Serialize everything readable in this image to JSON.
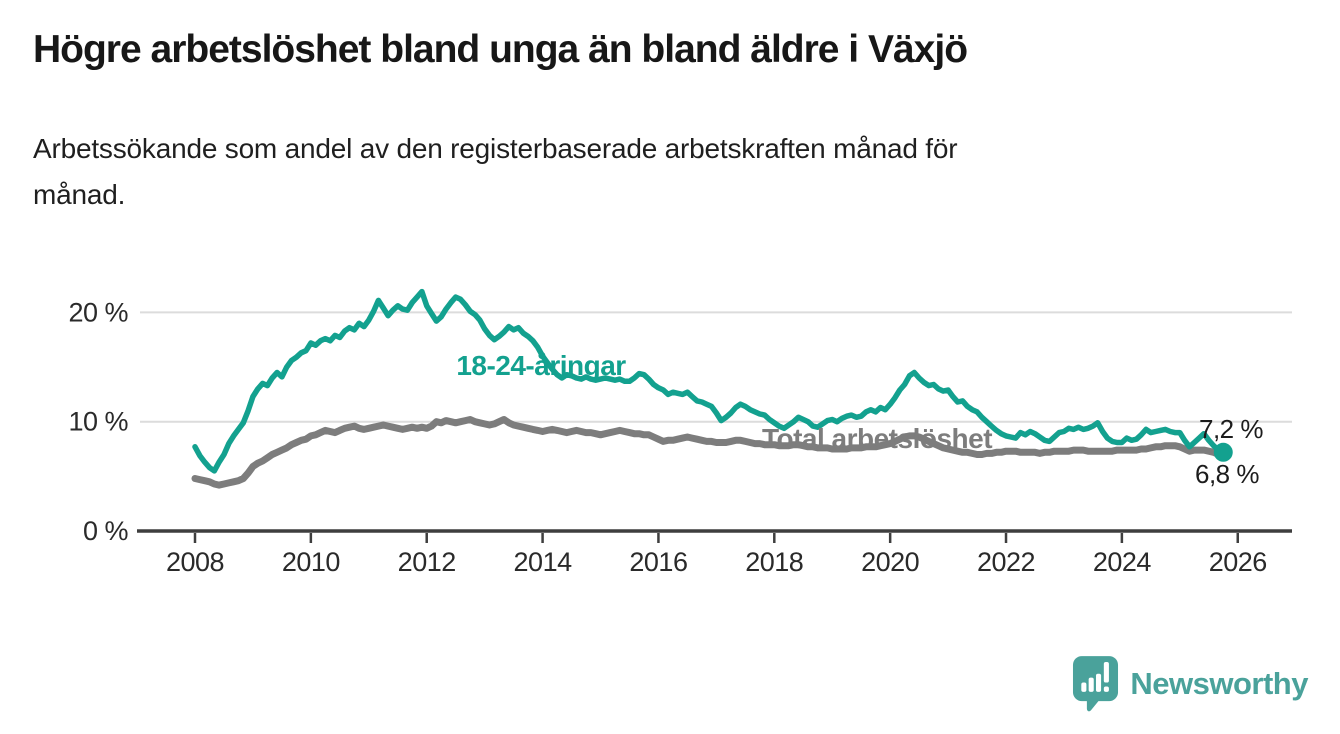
{
  "header": {
    "title": "Högre arbetslöshet bland unga än bland äldre i Växjö",
    "subtitle_lines": {
      "0": "Arbetssökande som andel av den registerbaserade arbetskraften månad för",
      "1": "månad."
    }
  },
  "chart_data": {
    "type": "line",
    "title": "Högre arbetslöshet bland unga än bland äldre i Växjö",
    "subtitle": "Arbetssökande som andel av den registerbaserade arbetskraften månad för månad.",
    "xlabel": "",
    "ylabel": "",
    "grid": "horizontal",
    "gridline_color": "#dcdcdc",
    "axis_color": "#3e3e3e",
    "tick_label_color": "#2a2a2a",
    "end_label_color": "#1c1c1c",
    "xlim": [
      2007.0,
      2027.0
    ],
    "ylim": [
      0,
      23
    ],
    "x_start": 2008.0,
    "x_step_years": 0.0833333,
    "x_ticks": [
      2008,
      2010,
      2012,
      2014,
      2016,
      2018,
      2020,
      2022,
      2024,
      2026
    ],
    "x_tick_labels": [
      "2008",
      "2010",
      "2012",
      "2014",
      "2016",
      "2018",
      "2020",
      "2022",
      "2024",
      "2026"
    ],
    "y_ticks": [
      0,
      10,
      20
    ],
    "y_tick_labels": [
      "0 %",
      "10 %",
      "20 %"
    ],
    "legend_position": "inline-labels",
    "series": [
      {
        "name": "18-24-åringar",
        "label": "18-24-åringar",
        "color": "#13a18f",
        "end_label": "7,2 %",
        "latest_value_pct": 7.2,
        "end_dot": true,
        "values": [
          7.7,
          6.9,
          6.3,
          5.8,
          5.5,
          6.3,
          7.0,
          8.0,
          8.7,
          9.3,
          9.9,
          11.0,
          12.3,
          13.0,
          13.5,
          13.3,
          14.0,
          14.5,
          14.1,
          15.0,
          15.6,
          15.9,
          16.3,
          16.5,
          17.2,
          17.0,
          17.4,
          17.6,
          17.4,
          17.9,
          17.7,
          18.3,
          18.6,
          18.4,
          19.0,
          18.7,
          19.3,
          20.1,
          21.1,
          20.4,
          19.7,
          20.2,
          20.6,
          20.3,
          20.2,
          20.9,
          21.4,
          21.9,
          20.6,
          19.9,
          19.2,
          19.6,
          20.3,
          20.9,
          21.4,
          21.2,
          20.7,
          20.1,
          19.8,
          19.3,
          18.5,
          17.9,
          17.5,
          17.8,
          18.2,
          18.7,
          18.4,
          18.6,
          18.1,
          17.8,
          17.4,
          16.8,
          16.0,
          15.4,
          14.8,
          14.3,
          14.0,
          14.3,
          14.2,
          14.0,
          13.9,
          14.1,
          13.9,
          13.8,
          13.9,
          14.0,
          13.9,
          13.8,
          13.9,
          13.7,
          13.7,
          14.0,
          14.4,
          14.3,
          13.9,
          13.4,
          13.1,
          12.9,
          12.5,
          12.7,
          12.6,
          12.5,
          12.7,
          12.3,
          11.9,
          11.8,
          11.6,
          11.4,
          10.8,
          10.1,
          10.4,
          10.8,
          11.3,
          11.6,
          11.4,
          11.1,
          10.9,
          10.7,
          10.6,
          10.2,
          9.9,
          9.6,
          9.4,
          9.7,
          10.0,
          10.4,
          10.2,
          10.0,
          9.6,
          9.5,
          9.8,
          10.1,
          10.2,
          10.0,
          10.3,
          10.5,
          10.6,
          10.4,
          10.5,
          10.9,
          11.1,
          10.9,
          11.3,
          11.1,
          11.6,
          12.2,
          12.9,
          13.4,
          14.2,
          14.5,
          14.0,
          13.6,
          13.3,
          13.4,
          13.0,
          12.8,
          12.9,
          12.3,
          11.8,
          11.9,
          11.4,
          11.1,
          10.9,
          10.4,
          10.0,
          9.6,
          9.2,
          8.9,
          8.7,
          8.6,
          8.5,
          9.0,
          8.8,
          9.1,
          8.9,
          8.6,
          8.3,
          8.2,
          8.6,
          9.0,
          9.1,
          9.4,
          9.3,
          9.5,
          9.3,
          9.4,
          9.6,
          9.9,
          9.1,
          8.5,
          8.2,
          8.1,
          8.1,
          8.5,
          8.3,
          8.4,
          8.8,
          9.3,
          9.0,
          9.1,
          9.2,
          9.3,
          9.1,
          9.0,
          9.0,
          8.3,
          7.7,
          8.1,
          8.5,
          8.9,
          8.3,
          7.8,
          7.4,
          7.2
        ]
      },
      {
        "name": "Total arbetslöshet",
        "label": "Total arbetslöshet",
        "color": "#7d7d7d",
        "end_label": "6,8 %",
        "latest_value_pct": 6.8,
        "end_dot": false,
        "values": [
          4.8,
          4.7,
          4.6,
          4.5,
          4.3,
          4.2,
          4.3,
          4.4,
          4.5,
          4.6,
          4.8,
          5.3,
          5.9,
          6.2,
          6.4,
          6.7,
          7.0,
          7.2,
          7.4,
          7.6,
          7.9,
          8.1,
          8.3,
          8.4,
          8.7,
          8.8,
          9.0,
          9.2,
          9.1,
          9.0,
          9.2,
          9.4,
          9.5,
          9.6,
          9.4,
          9.3,
          9.4,
          9.5,
          9.6,
          9.7,
          9.6,
          9.5,
          9.4,
          9.3,
          9.4,
          9.5,
          9.4,
          9.5,
          9.4,
          9.6,
          10.0,
          9.9,
          10.1,
          10.0,
          9.9,
          10.0,
          10.1,
          10.2,
          10.0,
          9.9,
          9.8,
          9.7,
          9.8,
          10.0,
          10.2,
          9.9,
          9.7,
          9.6,
          9.5,
          9.4,
          9.3,
          9.2,
          9.1,
          9.2,
          9.3,
          9.2,
          9.1,
          9.0,
          9.1,
          9.2,
          9.1,
          9.0,
          9.0,
          8.9,
          8.8,
          8.9,
          9.0,
          9.1,
          9.2,
          9.1,
          9.0,
          8.9,
          8.9,
          8.8,
          8.8,
          8.6,
          8.4,
          8.2,
          8.3,
          8.3,
          8.4,
          8.5,
          8.6,
          8.5,
          8.4,
          8.3,
          8.2,
          8.2,
          8.1,
          8.1,
          8.1,
          8.2,
          8.3,
          8.3,
          8.2,
          8.1,
          8.0,
          8.0,
          7.9,
          7.9,
          7.9,
          7.8,
          7.8,
          7.8,
          7.9,
          7.9,
          7.8,
          7.7,
          7.7,
          7.6,
          7.6,
          7.6,
          7.5,
          7.5,
          7.5,
          7.5,
          7.6,
          7.6,
          7.6,
          7.7,
          7.7,
          7.7,
          7.8,
          7.9,
          8.0,
          8.2,
          8.4,
          8.6,
          8.7,
          8.7,
          8.6,
          8.4,
          8.2,
          8.0,
          7.8,
          7.6,
          7.5,
          7.4,
          7.3,
          7.2,
          7.2,
          7.1,
          7.0,
          7.0,
          7.1,
          7.1,
          7.2,
          7.2,
          7.3,
          7.3,
          7.3,
          7.2,
          7.2,
          7.2,
          7.2,
          7.1,
          7.2,
          7.2,
          7.3,
          7.3,
          7.3,
          7.3,
          7.4,
          7.4,
          7.4,
          7.3,
          7.3,
          7.3,
          7.3,
          7.3,
          7.3,
          7.4,
          7.4,
          7.4,
          7.4,
          7.4,
          7.5,
          7.5,
          7.6,
          7.7,
          7.7,
          7.8,
          7.8,
          7.8,
          7.7,
          7.5,
          7.3,
          7.4,
          7.4,
          7.4,
          7.3,
          7.2,
          7.0,
          6.8
        ]
      }
    ]
  },
  "footer": {
    "logo_text": "Newsworthy",
    "logo_color": "#4aa29b",
    "logo_icon": "newsworthy-speech-bubble-bar-chart-icon"
  }
}
